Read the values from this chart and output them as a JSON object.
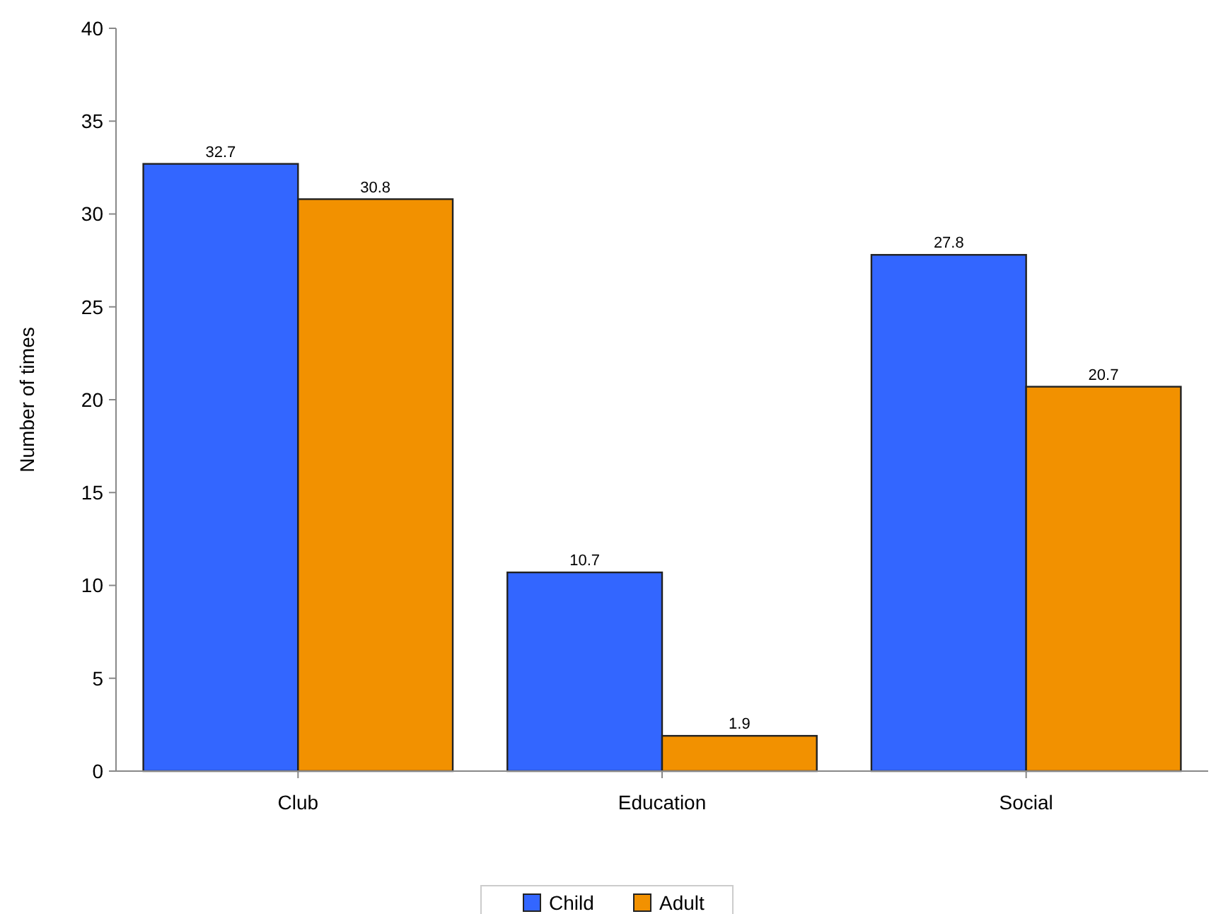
{
  "chart_data": {
    "type": "bar",
    "ylabel": "Number of times",
    "categories": [
      "Club",
      "Education",
      "Social"
    ],
    "series": [
      {
        "name": "Child",
        "color": "#3366ff",
        "values": [
          32.7,
          10.7,
          27.8
        ]
      },
      {
        "name": "Adult",
        "color": "#f29100",
        "values": [
          30.8,
          1.9,
          20.7
        ]
      }
    ],
    "ylim": [
      0,
      40
    ],
    "yticks": [
      0,
      5,
      10,
      15,
      20,
      25,
      30,
      35,
      40
    ],
    "data_labels": true,
    "legend": "bottom",
    "grid": false
  }
}
